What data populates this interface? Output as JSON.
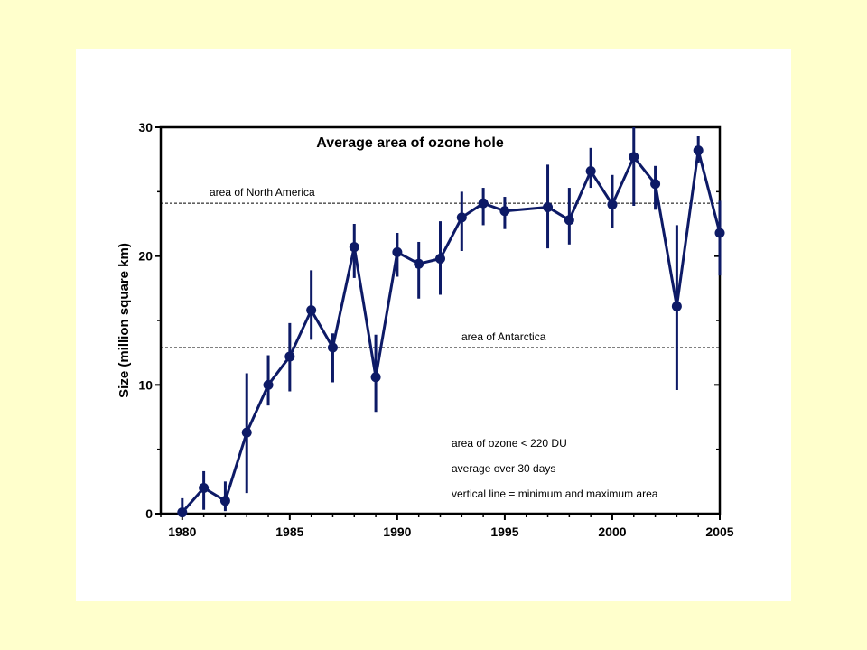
{
  "chart_data": {
    "type": "line",
    "title": "Average area of ozone hole",
    "xlabel": "",
    "ylabel": "Size (million square km)",
    "xlim": [
      1979,
      2005
    ],
    "ylim": [
      0,
      30
    ],
    "x_ticks": [
      1980,
      1985,
      1990,
      1995,
      2000,
      2005
    ],
    "y_ticks": [
      0,
      10,
      20,
      30
    ],
    "grid": false,
    "series": [
      {
        "name": "",
        "color": "#0d1a66",
        "points": [
          {
            "x": 1980,
            "y": 0.1,
            "min": 0.0,
            "max": 1.2
          },
          {
            "x": 1981,
            "y": 2.0,
            "min": 0.3,
            "max": 3.3
          },
          {
            "x": 1982,
            "y": 1.0,
            "min": 0.2,
            "max": 2.5
          },
          {
            "x": 1983,
            "y": 6.3,
            "min": 1.6,
            "max": 10.9
          },
          {
            "x": 1984,
            "y": 10.0,
            "min": 8.4,
            "max": 12.3
          },
          {
            "x": 1985,
            "y": 12.2,
            "min": 9.5,
            "max": 14.8
          },
          {
            "x": 1986,
            "y": 15.8,
            "min": 13.5,
            "max": 18.9
          },
          {
            "x": 1987,
            "y": 12.9,
            "min": 10.2,
            "max": 14.0
          },
          {
            "x": 1988,
            "y": 20.7,
            "min": 18.3,
            "max": 22.5
          },
          {
            "x": 1989,
            "y": 10.6,
            "min": 7.9,
            "max": 13.9
          },
          {
            "x": 1990,
            "y": 20.3,
            "min": 18.4,
            "max": 21.8
          },
          {
            "x": 1991,
            "y": 19.4,
            "min": 16.7,
            "max": 21.1
          },
          {
            "x": 1992,
            "y": 19.8,
            "min": 17.0,
            "max": 22.7
          },
          {
            "x": 1993,
            "y": 23.0,
            "min": 20.4,
            "max": 25.0
          },
          {
            "x": 1994,
            "y": 24.1,
            "min": 22.4,
            "max": 25.3
          },
          {
            "x": 1995,
            "y": 23.5,
            "min": 22.1,
            "max": 24.6
          },
          {
            "x": 1997,
            "y": 23.8,
            "min": 20.6,
            "max": 27.1
          },
          {
            "x": 1998,
            "y": 22.8,
            "min": 20.9,
            "max": 25.3
          },
          {
            "x": 1999,
            "y": 26.6,
            "min": 25.3,
            "max": 28.4
          },
          {
            "x": 2000,
            "y": 24.0,
            "min": 22.2,
            "max": 26.3
          },
          {
            "x": 2001,
            "y": 27.7,
            "min": 23.9,
            "max": 30.0
          },
          {
            "x": 2002,
            "y": 25.6,
            "min": 23.6,
            "max": 27.0
          },
          {
            "x": 2003,
            "y": 16.1,
            "min": 9.6,
            "max": 22.4
          },
          {
            "x": 2004,
            "y": 28.2,
            "min": 27.2,
            "max": 29.3
          },
          {
            "x": 2005,
            "y": 21.8,
            "min": 18.5,
            "max": 24.3
          }
        ]
      }
    ],
    "reference_lines": [
      {
        "label": "area of North America",
        "y": 24.1
      },
      {
        "label": "area of Antarctica",
        "y": 12.9
      }
    ],
    "annotations": [
      "area of ozone < 220 DU",
      "average over 30 days",
      "vertical line = minimum and maximum area"
    ]
  }
}
